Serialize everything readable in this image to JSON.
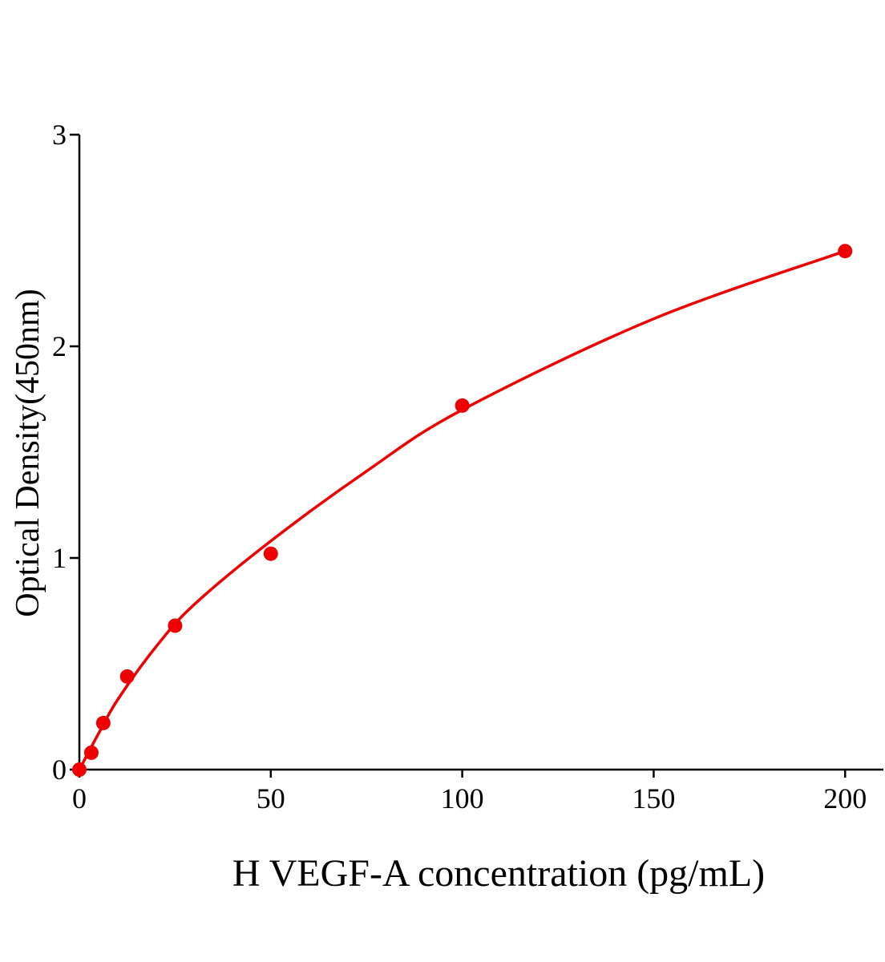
{
  "chart_data": {
    "type": "scatter",
    "x_label": "H VEGF-A concentration (pg/mL)",
    "y_label": "Optical Density(450nm)",
    "xlim": [
      0,
      210
    ],
    "ylim": [
      0,
      3
    ],
    "xticks": [
      0,
      50,
      100,
      150,
      200
    ],
    "yticks": [
      0,
      1,
      2,
      3
    ],
    "series": [
      {
        "mode": "markers",
        "color": "#ee0000",
        "x": [
          0,
          3.125,
          6.25,
          12.5,
          25,
          50,
          100,
          200
        ],
        "values": [
          0,
          0.08,
          0.22,
          0.44,
          0.68,
          1.02,
          1.72,
          2.45
        ]
      },
      {
        "mode": "line",
        "color": "#ee0000",
        "x": [
          0,
          5,
          10,
          20,
          30,
          50,
          75,
          100,
          150,
          200
        ],
        "values": [
          0,
          0.17,
          0.33,
          0.58,
          0.78,
          1.08,
          1.41,
          1.7,
          2.13,
          2.45
        ]
      }
    ]
  }
}
